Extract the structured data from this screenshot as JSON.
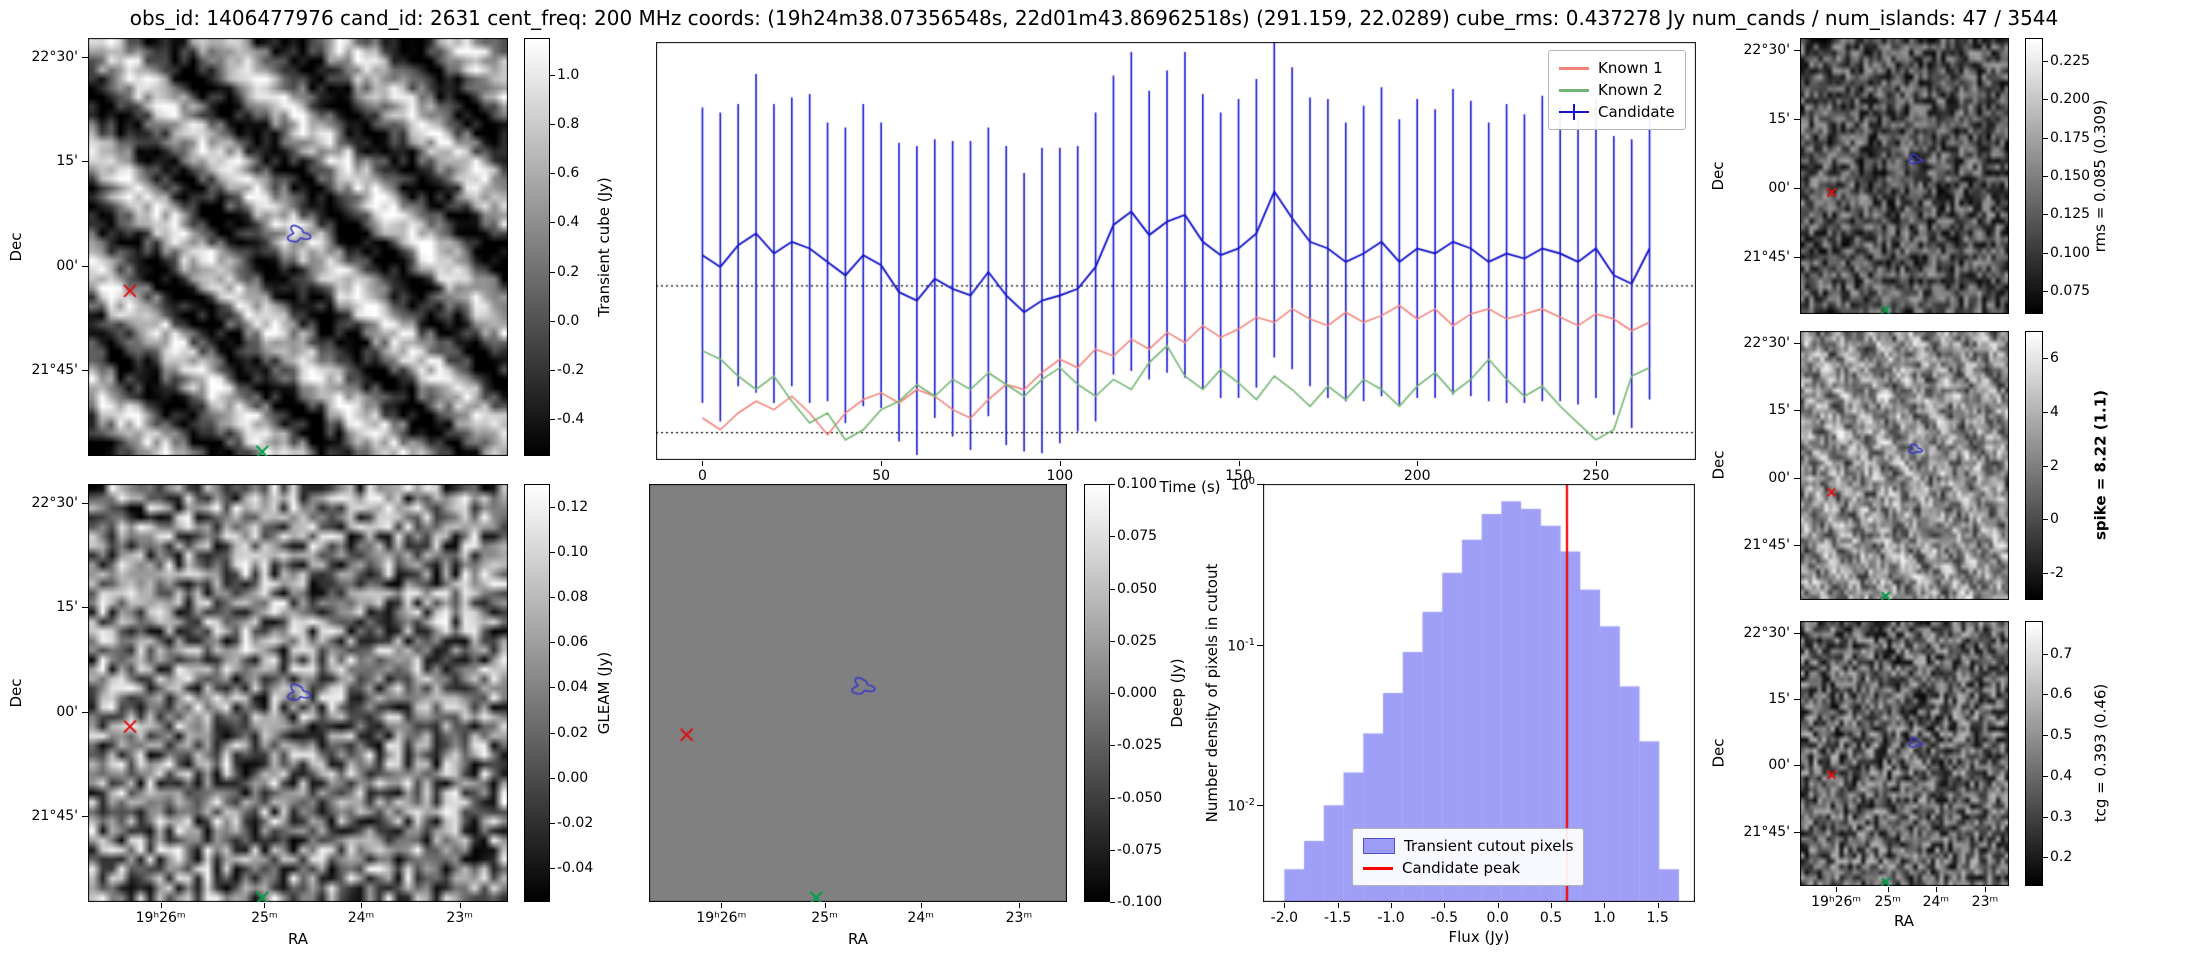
{
  "title": "obs_id: 1406477976 cand_id: 2631 cent_freq: 200 MHz coords: (19h24m38.07356548s, 22d01m43.86962518s) (291.159, 22.0289) cube_rms: 0.437278 Jy num_cands / num_islands: 47 / 3544",
  "axis_labels": {
    "dec": "Dec",
    "ra": "RA"
  },
  "dec_ticks": [
    "22°30'",
    "15'",
    "00'",
    "21°45'"
  ],
  "ra_ticks": [
    "19ʰ26ᵐ",
    "25ᵐ",
    "24ᵐ",
    "23ᵐ"
  ],
  "colors": {
    "red_marker": "#e01010",
    "green_marker": "#00a04a",
    "contour": "#3a3ac8",
    "accent_blue": "#1414cc"
  },
  "panels": {
    "transient_cube": {
      "colorbar": {
        "label": "Transient cube (Jy)",
        "vmin": -0.55,
        "vmax": 1.15,
        "tick_labels": [
          "1.0",
          "0.8",
          "0.6",
          "0.4",
          "0.2",
          "0.0",
          "-0.2",
          "-0.4"
        ]
      },
      "texture": {
        "kind": "stripes",
        "grid": 46,
        "base": 0.42,
        "amp": 0.3,
        "stripe": 0.45,
        "period": 13,
        "phase": 1.0,
        "seed": 42
      },
      "markers": {
        "red_x": [
          0.1,
          0.605
        ],
        "green_x": [
          0.415,
          0.99
        ],
        "contour": [
          0.5,
          0.47
        ]
      }
    },
    "gleam": {
      "colorbar": {
        "label": "GLEAM (Jy)",
        "vmin": -0.055,
        "vmax": 0.13,
        "tick_labels": [
          "0.12",
          "0.10",
          "0.08",
          "0.06",
          "0.04",
          "0.02",
          "0.00",
          "-0.02",
          "-0.04"
        ]
      },
      "texture": {
        "kind": "noise",
        "grid": 44,
        "base": 0.5,
        "amp": 0.5,
        "seed": 7
      },
      "markers": {
        "red_x": [
          0.1,
          0.58
        ],
        "green_x": [
          0.415,
          0.99
        ],
        "contour": [
          0.5,
          0.5
        ]
      }
    },
    "deep": {
      "colorbar": {
        "label": "Deep (Jy)",
        "vmin": -0.1,
        "vmax": 0.1,
        "tick_labels": [
          "0.100",
          "0.075",
          "0.050",
          "0.025",
          "0.000",
          "-0.025",
          "-0.050",
          "-0.075",
          "-0.100"
        ]
      },
      "texture": {
        "kind": "flat",
        "value": 0.5
      },
      "markers": {
        "red_x": [
          0.09,
          0.6
        ],
        "green_x": [
          0.4,
          0.99
        ],
        "contour": [
          0.51,
          0.485
        ]
      }
    },
    "rms": {
      "colorbar": {
        "label": "rms = 0.085 (0.309)",
        "vmin": 0.06,
        "vmax": 0.24,
        "tick_labels": [
          "0.225",
          "0.200",
          "0.175",
          "0.150",
          "0.125",
          "0.100",
          "0.075"
        ]
      },
      "texture": {
        "kind": "noise",
        "grid": 46,
        "base": 0.33,
        "amp": 0.32,
        "seed": 13
      },
      "markers": {
        "red_x": [
          0.15,
          0.56
        ],
        "green_x": [
          0.41,
          0.985
        ],
        "contour": [
          0.55,
          0.44
        ]
      }
    },
    "spike": {
      "colorbar": {
        "label": "spike = 8.22 (1.1)",
        "bold": true,
        "vmin": -3,
        "vmax": 7,
        "tick_labels": [
          "6",
          "4",
          "2",
          "0",
          "-2"
        ]
      },
      "texture": {
        "kind": "stripes",
        "grid": 52,
        "base": 0.56,
        "amp": 0.27,
        "stripe": 0.15,
        "period": 9,
        "phase": 2.0,
        "seed": 99
      },
      "markers": {
        "red_x": [
          0.15,
          0.6
        ],
        "green_x": [
          0.41,
          0.985
        ],
        "contour": [
          0.55,
          0.44
        ]
      }
    },
    "tcg": {
      "colorbar": {
        "label": "tcg = 0.393 (0.46)",
        "vmin": 0.13,
        "vmax": 0.78,
        "tick_labels": [
          "0.7",
          "0.6",
          "0.5",
          "0.4",
          "0.3",
          "0.2"
        ]
      },
      "texture": {
        "kind": "noise",
        "grid": 48,
        "base": 0.38,
        "amp": 0.36,
        "seed": 55
      },
      "markers": {
        "red_x": [
          0.15,
          0.58
        ],
        "green_x": [
          0.41,
          0.985
        ],
        "contour": [
          0.55,
          0.46
        ]
      }
    }
  },
  "chart_data": [
    {
      "type": "line",
      "name": "lightcurve",
      "xlabel": "Time (s)",
      "x_ticks": [
        0,
        50,
        100,
        150,
        200,
        250
      ],
      "xlim": [
        -13,
        278
      ],
      "ylim": [
        -0.6,
        1.89
      ],
      "hlines": [
        0.437278,
        -0.437278
      ],
      "legend_position": "upper right",
      "x": [
        0,
        5,
        10,
        15,
        20,
        25,
        30,
        35,
        40,
        45,
        50,
        55,
        60,
        65,
        70,
        75,
        80,
        85,
        90,
        95,
        100,
        105,
        110,
        115,
        120,
        125,
        130,
        135,
        140,
        145,
        150,
        155,
        160,
        165,
        170,
        175,
        180,
        185,
        190,
        195,
        200,
        205,
        210,
        215,
        220,
        225,
        230,
        235,
        240,
        245,
        250,
        255,
        260,
        265
      ],
      "series": [
        {
          "name": "Known 1",
          "color": "#f4837a",
          "values": [
            -0.35,
            -0.42,
            -0.32,
            -0.25,
            -0.3,
            -0.22,
            -0.32,
            -0.45,
            -0.32,
            -0.24,
            -0.2,
            -0.26,
            -0.18,
            -0.22,
            -0.3,
            -0.35,
            -0.24,
            -0.15,
            -0.18,
            -0.08,
            0.0,
            -0.05,
            0.06,
            0.02,
            0.12,
            0.06,
            0.16,
            0.1,
            0.2,
            0.13,
            0.18,
            0.25,
            0.22,
            0.3,
            0.24,
            0.2,
            0.28,
            0.22,
            0.26,
            0.32,
            0.24,
            0.3,
            0.2,
            0.27,
            0.3,
            0.24,
            0.27,
            0.3,
            0.25,
            0.2,
            0.27,
            0.24,
            0.17,
            0.22
          ]
        },
        {
          "name": "Known 2",
          "color": "#72b572",
          "values": [
            0.05,
            0.0,
            -0.1,
            -0.18,
            -0.1,
            -0.25,
            -0.38,
            -0.32,
            -0.48,
            -0.42,
            -0.3,
            -0.25,
            -0.15,
            -0.22,
            -0.12,
            -0.18,
            -0.08,
            -0.15,
            -0.22,
            -0.12,
            -0.05,
            -0.15,
            -0.22,
            -0.12,
            -0.18,
            -0.02,
            0.08,
            -0.1,
            -0.18,
            -0.06,
            -0.14,
            -0.24,
            -0.1,
            -0.18,
            -0.28,
            -0.16,
            -0.24,
            -0.12,
            -0.18,
            -0.28,
            -0.16,
            -0.08,
            -0.2,
            -0.12,
            0.0,
            -0.12,
            -0.22,
            -0.16,
            -0.28,
            -0.38,
            -0.48,
            -0.42,
            -0.1,
            -0.05
          ]
        },
        {
          "name": "Candidate",
          "color": "#1414cc",
          "values": [
            0.62,
            0.55,
            0.68,
            0.75,
            0.63,
            0.7,
            0.66,
            0.58,
            0.5,
            0.62,
            0.56,
            0.4,
            0.35,
            0.48,
            0.42,
            0.38,
            0.52,
            0.38,
            0.28,
            0.35,
            0.38,
            0.42,
            0.55,
            0.8,
            0.88,
            0.74,
            0.82,
            0.86,
            0.7,
            0.62,
            0.66,
            0.75,
            1.0,
            0.84,
            0.7,
            0.66,
            0.58,
            0.63,
            0.7,
            0.58,
            0.66,
            0.63,
            0.7,
            0.66,
            0.58,
            0.63,
            0.6,
            0.66,
            0.63,
            0.58,
            0.66,
            0.5,
            0.45,
            0.66
          ],
          "errors": [
            0.88,
            0.92,
            0.84,
            0.95,
            0.89,
            0.86,
            0.92,
            0.83,
            0.88,
            0.9,
            0.85,
            0.89,
            0.92,
            0.83,
            0.88,
            0.92,
            0.86,
            0.89,
            0.83,
            0.91,
            0.88,
            0.85,
            0.92,
            0.89,
            0.95,
            0.86,
            0.9,
            0.97,
            0.88,
            0.85,
            0.89,
            0.92,
            0.99,
            0.9,
            0.86,
            0.89,
            0.83,
            0.88,
            0.92,
            0.85,
            0.89,
            0.86,
            0.91,
            0.88,
            0.83,
            0.89,
            0.86,
            0.91,
            0.88,
            0.85,
            0.89,
            0.83,
            0.86,
            0.9
          ]
        }
      ]
    },
    {
      "type": "bar",
      "name": "flux-histogram",
      "xlabel": "Flux (Jy)",
      "ylabel": "Number density of pixels in cutout",
      "yscale": "log",
      "bar_color": "rgba(80,80,240,0.55)",
      "vline": 0.65,
      "vline_color": "#ff0000",
      "bin_start": -2.0,
      "bin_width": 0.185,
      "values": [
        0.004,
        0.006,
        0.01,
        0.016,
        0.028,
        0.05,
        0.09,
        0.16,
        0.28,
        0.45,
        0.65,
        0.78,
        0.7,
        0.55,
        0.38,
        0.22,
        0.13,
        0.055,
        0.025,
        0.004
      ],
      "xlim": [
        -2.2,
        1.85
      ],
      "ylim": [
        0.0025,
        1.0
      ],
      "x_ticks": [
        -2.0,
        -1.5,
        -1.0,
        -0.5,
        0.0,
        0.5,
        1.0,
        1.5
      ],
      "y_ticks": [
        {
          "value": 1,
          "exp": "0"
        },
        {
          "value": 0.1,
          "exp": "-1"
        },
        {
          "value": 0.01,
          "exp": "-2"
        }
      ],
      "legend": [
        {
          "label": "Transient cutout pixels"
        },
        {
          "label": "Candidate peak"
        }
      ]
    }
  ]
}
